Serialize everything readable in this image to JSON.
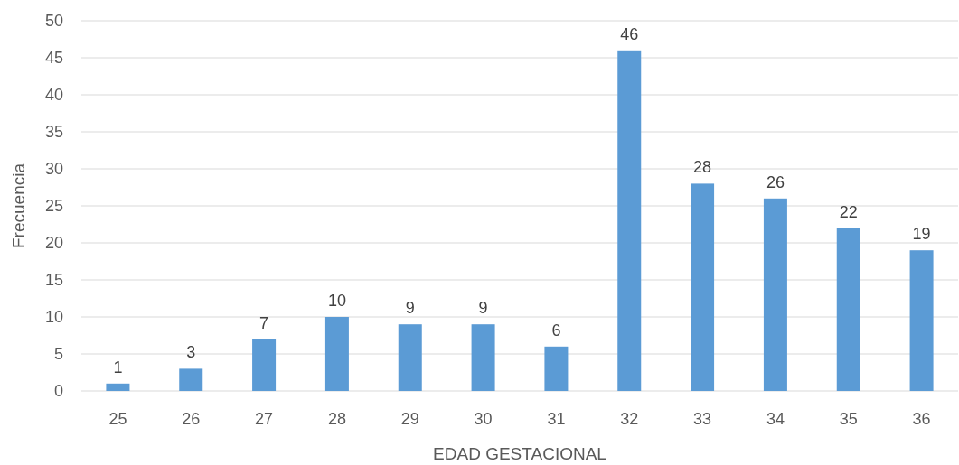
{
  "chart_data": {
    "type": "bar",
    "xlabel": "EDAD GESTACIONAL",
    "ylabel": "Frecuencia",
    "categories": [
      "25",
      "26",
      "27",
      "28",
      "29",
      "30",
      "31",
      "32",
      "33",
      "34",
      "35",
      "36"
    ],
    "values": [
      1,
      3,
      7,
      10,
      9,
      9,
      6,
      46,
      28,
      26,
      22,
      19
    ],
    "color": "#5b9bd5",
    "ylim": [
      0,
      50
    ],
    "yticks": [
      0,
      5,
      10,
      15,
      20,
      25,
      30,
      35,
      40,
      45,
      50
    ],
    "grid": "y",
    "data_labels": true
  }
}
